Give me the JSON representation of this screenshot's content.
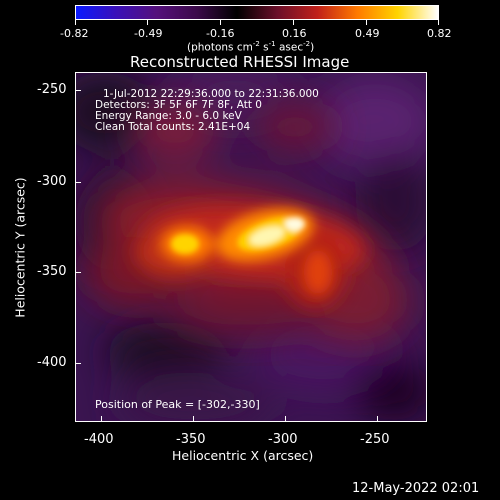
{
  "colorbar": {
    "ticks": [
      "-0.82",
      "-0.49",
      "-0.16",
      "0.16",
      "0.49",
      "0.82"
    ],
    "unit_parts": {
      "p1": "(photons cm",
      "e1": "-2",
      "p2": " s",
      "e2": "-1",
      "p3": " asec",
      "e3": "-2",
      "p4": ")"
    },
    "stops": [
      "#0a1aff",
      "#3a10b8",
      "#55107c",
      "#3c0a4a",
      "#000000",
      "#6a0f2a",
      "#c0201a",
      "#ff7a00",
      "#ffd400",
      "#ffffff"
    ]
  },
  "plot": {
    "title": "Reconstructed RHESSI Image",
    "info": [
      "1-Jul-2012 22:29:36.000 to 22:31:36.000",
      "Detectors: 3F 5F 6F 7F 8F, Att 0",
      "Energy Range: 3.0 - 6.0 keV",
      "Clean     Total counts: 2.41E+04"
    ],
    "peak_label": "Position of Peak = [-302,-330]",
    "xlabel": "Heliocentric X (arcsec)",
    "ylabel": "Heliocentric Y (arcsec)",
    "xticks": [
      "-400",
      "-350",
      "-300",
      "-250"
    ],
    "yticks": [
      "-250",
      "-300",
      "-350",
      "-400"
    ]
  },
  "footer": {
    "date": "12-May-2022 02:01"
  }
}
